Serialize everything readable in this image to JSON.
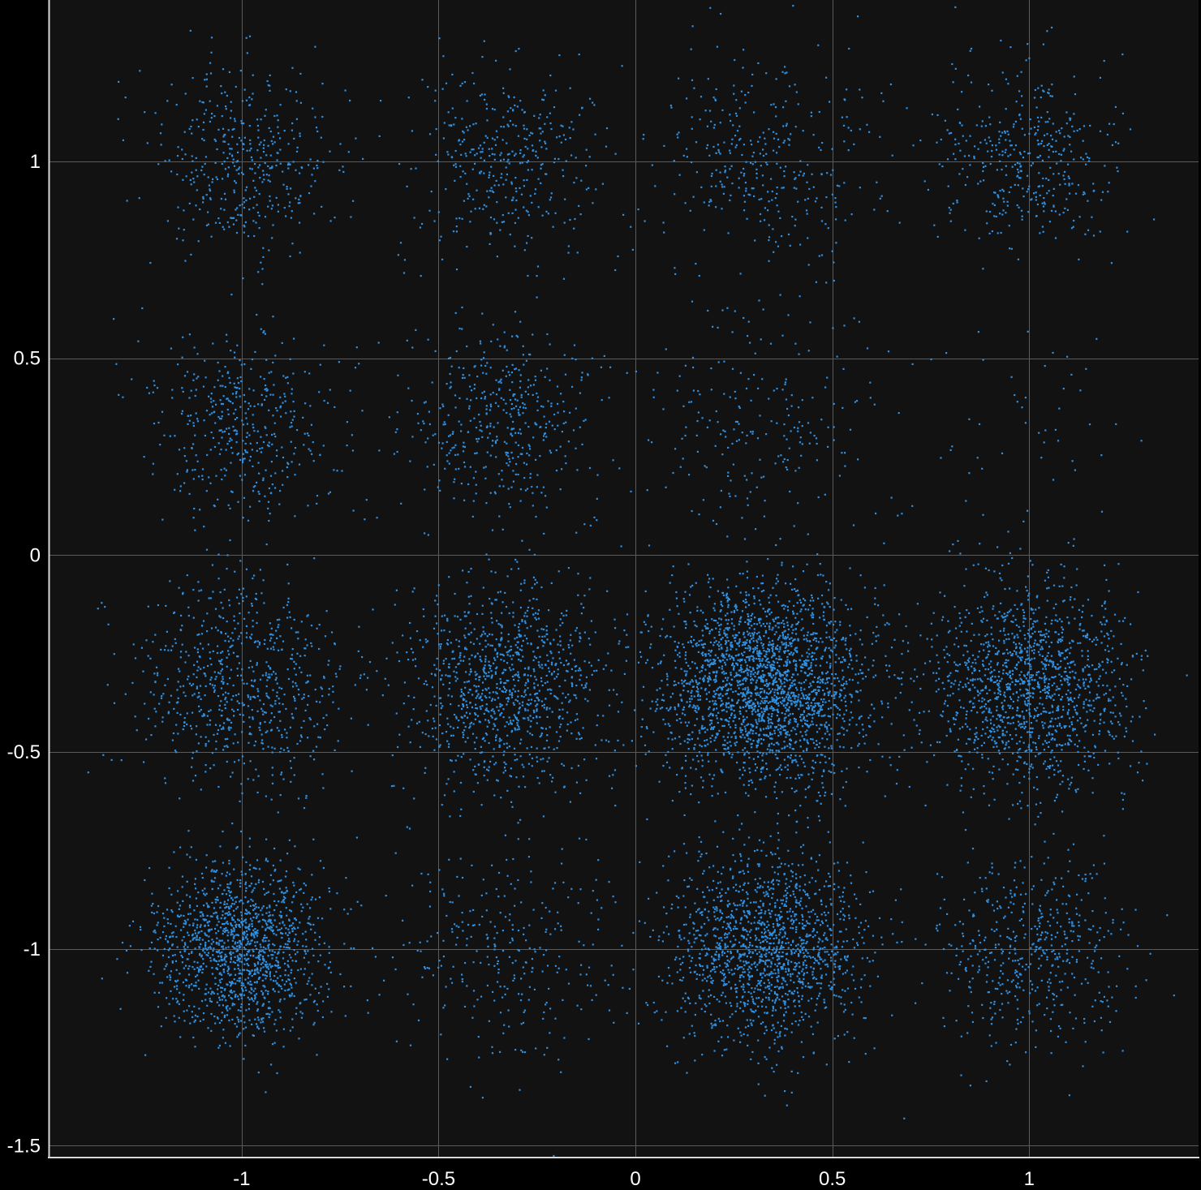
{
  "chart_data": {
    "type": "scatter",
    "title": "",
    "xlabel": "",
    "ylabel": "",
    "xlim": [
      -1.49,
      1.43
    ],
    "ylim": [
      -1.53,
      1.41
    ],
    "grid": true,
    "x_ticks": [
      -1,
      -0.5,
      0,
      0.5,
      1
    ],
    "y_ticks": [
      -1.5,
      -1,
      -0.5,
      0,
      0.5,
      1
    ],
    "x_tick_labels": [
      "-1",
      "-0.5",
      "0",
      "0.5",
      "1"
    ],
    "y_tick_labels": [
      "-1.5",
      "-1",
      "-0.5",
      "0",
      "0.5",
      "1"
    ],
    "series": [
      {
        "marker_color": "#2f8fe0",
        "distribution": "16-QAM constellation clusters with Gaussian noise",
        "clusters": [
          {
            "cx": -1.0,
            "cy": 1.0,
            "sigma": 0.12,
            "points": 420
          },
          {
            "cx": -0.33,
            "cy": 1.0,
            "sigma": 0.12,
            "points": 380
          },
          {
            "cx": 0.33,
            "cy": 1.0,
            "sigma": 0.14,
            "points": 350
          },
          {
            "cx": 1.0,
            "cy": 1.0,
            "sigma": 0.12,
            "points": 400
          },
          {
            "cx": -1.0,
            "cy": 0.33,
            "sigma": 0.12,
            "points": 430
          },
          {
            "cx": -0.33,
            "cy": 0.33,
            "sigma": 0.12,
            "points": 450
          },
          {
            "cx": 0.33,
            "cy": 0.33,
            "sigma": 0.15,
            "points": 230
          },
          {
            "cx": 1.0,
            "cy": 0.33,
            "sigma": 0.15,
            "points": 50
          },
          {
            "cx": -1.0,
            "cy": -0.33,
            "sigma": 0.13,
            "points": 700
          },
          {
            "cx": -0.33,
            "cy": -0.33,
            "sigma": 0.13,
            "points": 1050
          },
          {
            "cx": 0.33,
            "cy": -0.33,
            "sigma": 0.13,
            "points": 2400
          },
          {
            "cx": 1.0,
            "cy": -0.33,
            "sigma": 0.13,
            "points": 1400
          },
          {
            "cx": -1.0,
            "cy": -1.0,
            "sigma": 0.11,
            "points": 1400
          },
          {
            "cx": -0.33,
            "cy": -1.0,
            "sigma": 0.14,
            "points": 300
          },
          {
            "cx": 0.33,
            "cy": -1.0,
            "sigma": 0.12,
            "points": 1500
          },
          {
            "cx": 1.0,
            "cy": -1.0,
            "sigma": 0.12,
            "points": 500
          }
        ]
      }
    ]
  }
}
